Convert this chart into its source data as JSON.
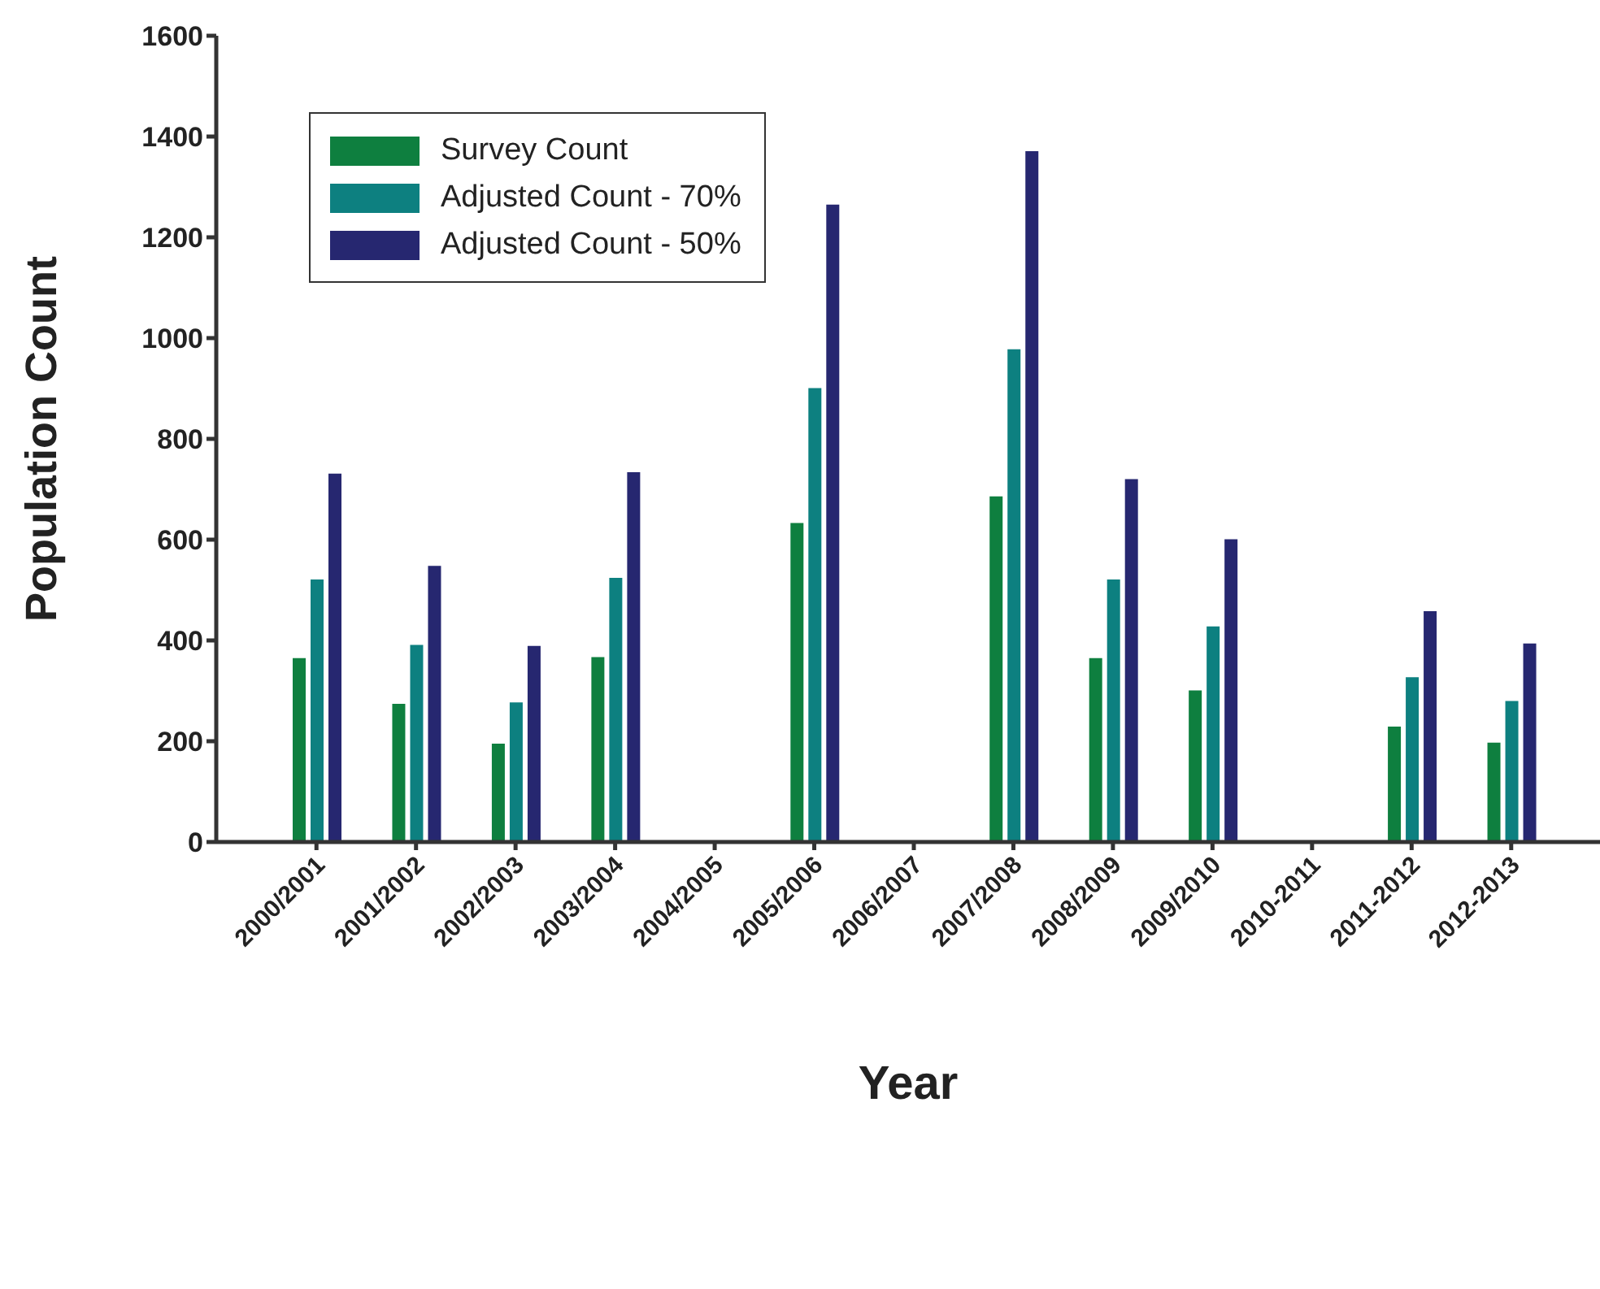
{
  "chart_data": {
    "type": "bar",
    "xlabel": "Year",
    "ylabel": "Population Count",
    "categories": [
      "2000/2001",
      "2001/2002",
      "2002/2003",
      "2003/2004",
      "2004/2005",
      "2005/2006",
      "2006/2007",
      "2007/2008",
      "2008/2009",
      "2009/2010",
      "2010-2011",
      "2011-2012",
      "2012-2013"
    ],
    "series": [
      {
        "name": "Survey Count",
        "color": "#0e7f3f",
        "values": [
          365,
          274,
          195,
          367,
          null,
          633,
          null,
          686,
          365,
          301,
          null,
          229,
          197
        ]
      },
      {
        "name": "Adjusted Count - 70%",
        "color": "#0d8080",
        "values": [
          521,
          391,
          277,
          524,
          null,
          901,
          null,
          978,
          521,
          428,
          null,
          327,
          280
        ]
      },
      {
        "name": "Adjusted Count - 50%",
        "color": "#262770",
        "values": [
          731,
          548,
          389,
          734,
          null,
          1265,
          null,
          1371,
          720,
          601,
          null,
          458,
          394
        ]
      }
    ],
    "ylim": [
      0,
      1600
    ],
    "yticks": [
      0,
      200,
      400,
      600,
      800,
      1000,
      1200,
      1400,
      1600
    ],
    "grid": false,
    "legend": "top left"
  }
}
